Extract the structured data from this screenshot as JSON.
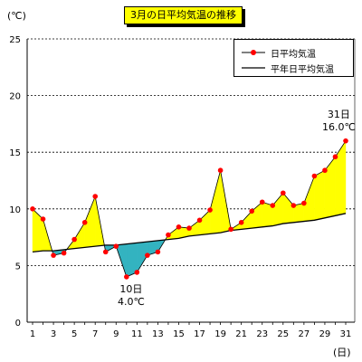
{
  "title": "3月の日平均気温の推移",
  "y_unit": "(℃)",
  "x_unit": "(日)",
  "legend": {
    "daily_label": "日平均気温",
    "normal_label": "平年日平均気温"
  },
  "annotations": {
    "max_day": "31日",
    "max_value": "16.0℃",
    "min_day": "10日",
    "min_value": "4.0℃"
  },
  "colors": {
    "above_fill": "#ffff00",
    "below_fill": "#33b3c0",
    "daily_line": "#000000",
    "daily_marker": "#ff0000",
    "normal_line": "#000000",
    "grid": "#000000"
  },
  "chart_data": {
    "type": "line",
    "title": "3月の日平均気温の推移",
    "xlabel": "(日)",
    "ylabel": "(℃)",
    "x": [
      1,
      2,
      3,
      4,
      5,
      6,
      7,
      8,
      9,
      10,
      11,
      12,
      13,
      14,
      15,
      16,
      17,
      18,
      19,
      20,
      21,
      22,
      23,
      24,
      25,
      26,
      27,
      28,
      29,
      30,
      31
    ],
    "x_ticks": [
      1,
      3,
      5,
      7,
      9,
      11,
      13,
      15,
      17,
      19,
      21,
      23,
      25,
      27,
      29,
      31
    ],
    "ylim": [
      0,
      25
    ],
    "y_ticks": [
      0,
      5,
      10,
      15,
      20,
      25
    ],
    "grid": "horizontal dashed",
    "legend_position": "top-right",
    "series": [
      {
        "name": "日平均気温",
        "values": [
          10.0,
          9.1,
          5.9,
          6.1,
          7.3,
          8.8,
          11.1,
          6.2,
          6.7,
          4.0,
          4.4,
          5.9,
          6.2,
          7.7,
          8.4,
          8.3,
          9.0,
          9.9,
          13.4,
          8.2,
          8.8,
          9.8,
          10.6,
          10.3,
          11.4,
          10.3,
          10.5,
          12.9,
          13.4,
          14.6,
          16.0
        ]
      },
      {
        "name": "平年日平均気温",
        "values": [
          6.2,
          6.3,
          6.3,
          6.4,
          6.5,
          6.6,
          6.7,
          6.8,
          6.8,
          6.9,
          7.0,
          7.1,
          7.2,
          7.3,
          7.4,
          7.6,
          7.7,
          7.8,
          7.9,
          8.1,
          8.2,
          8.3,
          8.4,
          8.5,
          8.7,
          8.8,
          8.9,
          9.0,
          9.2,
          9.4,
          9.6
        ]
      }
    ]
  }
}
